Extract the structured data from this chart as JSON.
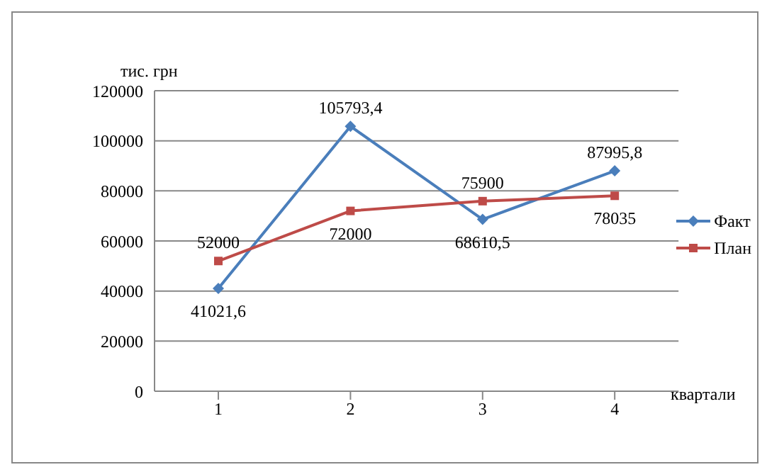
{
  "chart_data": {
    "type": "line",
    "ylabel": "тис. грн",
    "xlabel": "квартали",
    "categories": [
      "1",
      "2",
      "3",
      "4"
    ],
    "series": [
      {
        "name": "Факт",
        "color": "#4a7ebb",
        "marker": "diamond",
        "values": [
          41021.6,
          105793.4,
          68610.5,
          87995.8
        ],
        "value_labels": [
          "41021,6",
          "105793,4",
          "68610,5",
          "87995,8"
        ]
      },
      {
        "name": "План",
        "color": "#be4b48",
        "marker": "square",
        "values": [
          52000,
          72000,
          75900,
          78035
        ],
        "value_labels": [
          "52000",
          "72000",
          "75900",
          "78035"
        ]
      }
    ],
    "ylim": [
      0,
      120000
    ],
    "yticks": [
      0,
      20000,
      40000,
      60000,
      80000,
      100000,
      120000
    ],
    "grid": "y",
    "legend": "right"
  }
}
